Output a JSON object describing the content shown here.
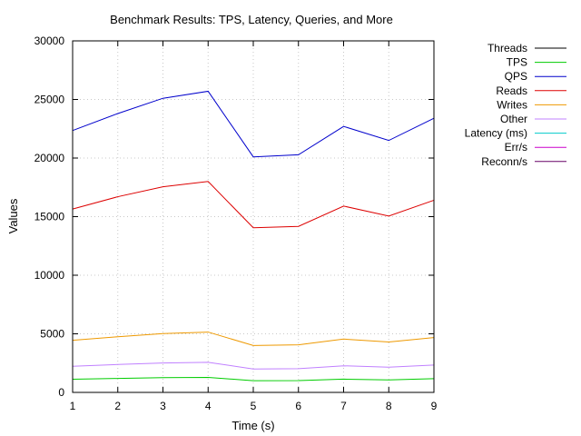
{
  "chart_data": {
    "type": "line",
    "title": "Benchmark Results: TPS, Latency, Queries, and More",
    "xlabel": "Time (s)",
    "ylabel": "Values",
    "xlim": [
      1,
      9
    ],
    "ylim": [
      0,
      30000
    ],
    "x": [
      1,
      2,
      3,
      4,
      5,
      6,
      7,
      8,
      9
    ],
    "xticks": [
      1,
      2,
      3,
      4,
      5,
      6,
      7,
      8,
      9
    ],
    "yticks": [
      0,
      5000,
      10000,
      15000,
      20000,
      25000,
      30000
    ],
    "grid": true,
    "legend_position": "right",
    "series": [
      {
        "name": "Threads",
        "color": "#000000",
        "values": [
          null,
          null,
          null,
          null,
          null,
          null,
          null,
          null,
          null
        ]
      },
      {
        "name": "TPS",
        "color": "#00cc00",
        "values": [
          1120,
          1190,
          1255,
          1280,
          1000,
          1010,
          1130,
          1070,
          1170
        ]
      },
      {
        "name": "QPS",
        "color": "#0000cc",
        "values": [
          22350,
          23800,
          25100,
          25700,
          20100,
          20280,
          22700,
          21500,
          23400
        ]
      },
      {
        "name": "Reads",
        "color": "#dd0000",
        "values": [
          15650,
          16700,
          17550,
          18000,
          14050,
          14170,
          15900,
          15050,
          16400
        ]
      },
      {
        "name": "Writes",
        "color": "#ee9900",
        "values": [
          4450,
          4750,
          5020,
          5150,
          4000,
          4060,
          4550,
          4300,
          4680
        ]
      },
      {
        "name": "Other",
        "color": "#c080ff",
        "values": [
          2230,
          2380,
          2510,
          2570,
          2000,
          2030,
          2270,
          2150,
          2340
        ]
      },
      {
        "name": "Latency (ms)",
        "color": "#00cccc",
        "values": [
          null,
          null,
          null,
          null,
          null,
          null,
          null,
          null,
          null
        ]
      },
      {
        "name": "Err/s",
        "color": "#cc00cc",
        "values": [
          null,
          null,
          null,
          null,
          null,
          null,
          null,
          null,
          null
        ]
      },
      {
        "name": "Reconn/s",
        "color": "#660066",
        "values": [
          null,
          null,
          null,
          null,
          null,
          null,
          null,
          null,
          null
        ]
      }
    ]
  }
}
